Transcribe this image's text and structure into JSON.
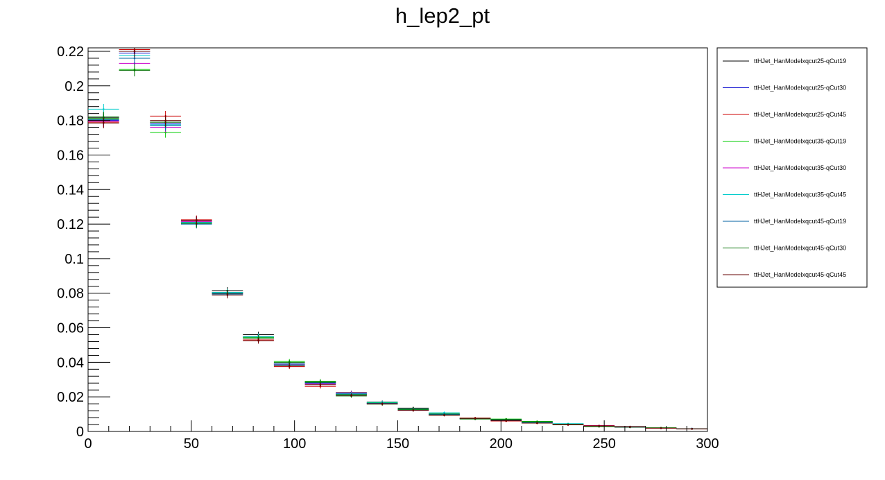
{
  "chart_data": {
    "type": "histogram",
    "title": "h_lep2_pt",
    "xlabel": "",
    "ylabel": "",
    "xlim": [
      0,
      300
    ],
    "ylim": [
      0,
      0.222
    ],
    "x_ticks": [
      0,
      50,
      100,
      150,
      200,
      250,
      300
    ],
    "y_ticks": [
      0,
      0.02,
      0.04,
      0.06,
      0.08,
      0.1,
      0.12,
      0.14,
      0.16,
      0.18,
      0.2,
      0.22
    ],
    "x_tick_labels": [
      "0",
      "50",
      "100",
      "150",
      "200",
      "250",
      "300"
    ],
    "y_tick_labels": [
      "0",
      "0.02",
      "0.04",
      "0.06",
      "0.08",
      "0.1",
      "0.12",
      "0.14",
      "0.16",
      "0.18",
      "0.2",
      "0.22"
    ],
    "bin_width": 15,
    "bin_centers": [
      7.5,
      22.5,
      37.5,
      52.5,
      67.5,
      82.5,
      97.5,
      112.5,
      127.5,
      142.5,
      157.5,
      172.5,
      187.5,
      202.5,
      217.5,
      232.5,
      247.5,
      262.5,
      277.5,
      292.5
    ],
    "grid": false,
    "legend_position": "right",
    "series": [
      {
        "name": "ttHJet_HanModelxqcut25-qCut19",
        "color": "#000000",
        "values": [
          0.1815,
          0.22,
          0.179,
          0.121,
          0.0815,
          0.056,
          0.039,
          0.029,
          0.0225,
          0.017,
          0.0135,
          0.01,
          0.0075,
          0.0065,
          0.005,
          0.004,
          0.003,
          0.0028,
          0.002,
          0.0016
        ],
        "errors": [
          0.003,
          0.0035,
          0.003,
          0.0025,
          0.002,
          0.0017,
          0.0014,
          0.0012,
          0.001,
          0.0009,
          0.0008,
          0.0007,
          0.0006,
          0.0005,
          0.0005,
          0.0004,
          0.0004,
          0.0004,
          0.0003,
          0.0003
        ]
      },
      {
        "name": "ttHJet_HanModelxqcut25-qCut30",
        "color": "#0000cc",
        "values": [
          0.18,
          0.219,
          0.178,
          0.122,
          0.08,
          0.0545,
          0.0385,
          0.028,
          0.022,
          0.0165,
          0.0125,
          0.0098,
          0.0073,
          0.0064,
          0.0052,
          0.0041,
          0.0031,
          0.0026,
          0.002,
          0.0016
        ],
        "errors": [
          0.003,
          0.0035,
          0.003,
          0.0025,
          0.002,
          0.0017,
          0.0014,
          0.0012,
          0.001,
          0.0009,
          0.0008,
          0.0007,
          0.0006,
          0.0005,
          0.0005,
          0.0004,
          0.0004,
          0.0004,
          0.0003,
          0.0003
        ]
      },
      {
        "name": "ttHJet_HanModelxqcut25-qCut45",
        "color": "#cc0000",
        "values": [
          0.179,
          0.221,
          0.1825,
          0.1225,
          0.0795,
          0.053,
          0.0375,
          0.026,
          0.0215,
          0.016,
          0.0125,
          0.0095,
          0.0078,
          0.006,
          0.0048,
          0.0038,
          0.0034,
          0.0026,
          0.0019,
          0.0015
        ],
        "errors": [
          0.003,
          0.0035,
          0.003,
          0.0025,
          0.002,
          0.0017,
          0.0014,
          0.0012,
          0.001,
          0.0009,
          0.0008,
          0.0007,
          0.0006,
          0.0005,
          0.0005,
          0.0004,
          0.0004,
          0.0004,
          0.0003,
          0.0003
        ]
      },
      {
        "name": "ttHJet_HanModelxqcut35-qCut19",
        "color": "#00cc00",
        "values": [
          0.181,
          0.2095,
          0.173,
          0.1205,
          0.0805,
          0.0545,
          0.0405,
          0.029,
          0.0215,
          0.0165,
          0.013,
          0.0105,
          0.0076,
          0.0072,
          0.0058,
          0.0042,
          0.0028,
          0.0024,
          0.0021,
          0.0015
        ],
        "errors": [
          0.003,
          0.0035,
          0.003,
          0.0025,
          0.002,
          0.0017,
          0.0014,
          0.0012,
          0.001,
          0.0009,
          0.0008,
          0.0007,
          0.0006,
          0.0005,
          0.0005,
          0.0004,
          0.0004,
          0.0004,
          0.0003,
          0.0003
        ]
      },
      {
        "name": "ttHJet_HanModelxqcut35-qCut30",
        "color": "#cc00cc",
        "values": [
          0.1795,
          0.213,
          0.176,
          0.1215,
          0.08,
          0.054,
          0.039,
          0.0275,
          0.0222,
          0.0162,
          0.0128,
          0.01,
          0.0074,
          0.0066,
          0.005,
          0.004,
          0.0033,
          0.0025,
          0.002,
          0.0015
        ],
        "errors": [
          0.003,
          0.0035,
          0.003,
          0.0025,
          0.002,
          0.0017,
          0.0014,
          0.0012,
          0.001,
          0.0009,
          0.0008,
          0.0007,
          0.0006,
          0.0005,
          0.0005,
          0.0004,
          0.0004,
          0.0004,
          0.0003,
          0.0003
        ]
      },
      {
        "name": "ttHJet_HanModelxqcut35-qCut45",
        "color": "#00cccc",
        "values": [
          0.1865,
          0.2175,
          0.1775,
          0.121,
          0.0805,
          0.055,
          0.0385,
          0.0285,
          0.0218,
          0.0168,
          0.0128,
          0.0108,
          0.0074,
          0.0066,
          0.0052,
          0.0045,
          0.003,
          0.0025,
          0.002,
          0.0016
        ],
        "errors": [
          0.003,
          0.0035,
          0.003,
          0.0025,
          0.002,
          0.0017,
          0.0014,
          0.0012,
          0.001,
          0.0009,
          0.0008,
          0.0007,
          0.0006,
          0.0005,
          0.0005,
          0.0004,
          0.0004,
          0.0004,
          0.0003,
          0.0003
        ]
      },
      {
        "name": "ttHJet_HanModelxqcut45-qCut19",
        "color": "#0060a0",
        "values": [
          0.1805,
          0.216,
          0.177,
          0.12,
          0.0795,
          0.054,
          0.0392,
          0.0282,
          0.0212,
          0.0162,
          0.0124,
          0.01,
          0.0074,
          0.0066,
          0.005,
          0.004,
          0.003,
          0.0025,
          0.002,
          0.0016
        ],
        "errors": [
          0.003,
          0.0035,
          0.003,
          0.0025,
          0.002,
          0.0017,
          0.0014,
          0.0012,
          0.001,
          0.0009,
          0.0008,
          0.0007,
          0.0006,
          0.0005,
          0.0005,
          0.0004,
          0.0004,
          0.0004,
          0.0003,
          0.0003
        ]
      },
      {
        "name": "ttHJet_HanModelxqcut45-qCut30",
        "color": "#007000",
        "values": [
          0.182,
          0.209,
          0.179,
          0.1205,
          0.08,
          0.054,
          0.04,
          0.0285,
          0.0205,
          0.0158,
          0.0126,
          0.0096,
          0.0072,
          0.007,
          0.0056,
          0.0041,
          0.0028,
          0.0025,
          0.0021,
          0.0015
        ],
        "errors": [
          0.003,
          0.0035,
          0.003,
          0.0025,
          0.002,
          0.0017,
          0.0014,
          0.0012,
          0.001,
          0.0009,
          0.0008,
          0.0007,
          0.0006,
          0.0005,
          0.0005,
          0.0004,
          0.0004,
          0.0004,
          0.0003,
          0.0003
        ]
      },
      {
        "name": "ttHJet_HanModelxqcut45-qCut45",
        "color": "#660000",
        "values": [
          0.1785,
          0.22,
          0.18,
          0.122,
          0.079,
          0.0525,
          0.038,
          0.027,
          0.021,
          0.016,
          0.0122,
          0.0094,
          0.0076,
          0.0062,
          0.0048,
          0.0039,
          0.0032,
          0.0026,
          0.0019,
          0.0015
        ],
        "errors": [
          0.003,
          0.0035,
          0.003,
          0.0025,
          0.002,
          0.0017,
          0.0014,
          0.0012,
          0.001,
          0.0009,
          0.0008,
          0.0007,
          0.0006,
          0.0005,
          0.0005,
          0.0004,
          0.0004,
          0.0004,
          0.0003,
          0.0003
        ]
      }
    ]
  }
}
